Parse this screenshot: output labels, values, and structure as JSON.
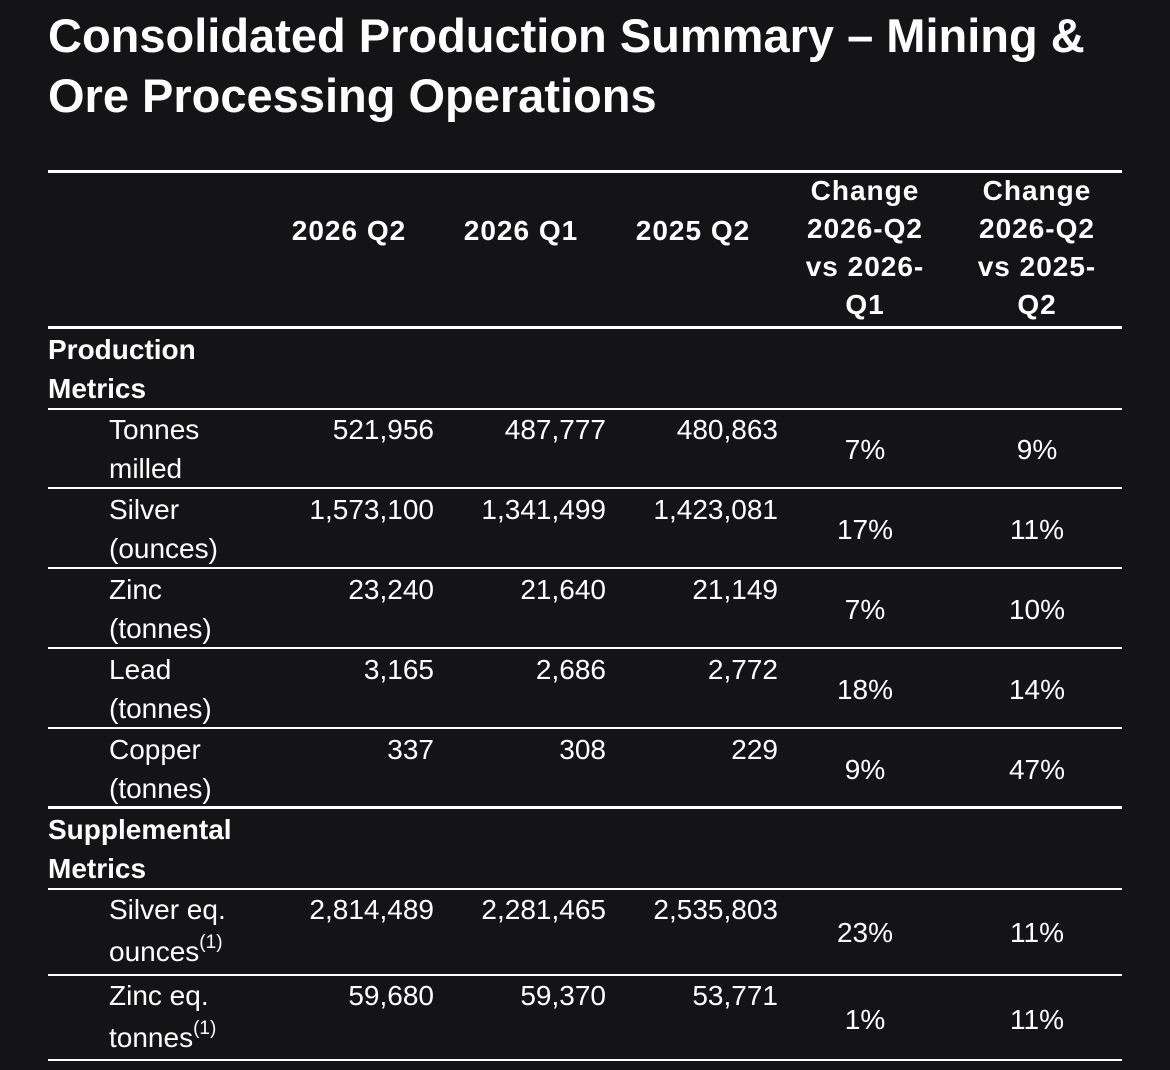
{
  "title": "Consolidated Production Summary – Mining & Ore Processing Operations",
  "columns": {
    "c1": "2026 Q2",
    "c2": "2026 Q1",
    "c3": "2025 Q2",
    "c4_l1": "Change",
    "c4_l2": "2026-Q2",
    "c4_l3": "vs 2026-",
    "c4_l4": "Q1",
    "c5_l1": "Change",
    "c5_l2": "2026-Q2",
    "c5_l3": "vs 2025-",
    "c5_l4": "Q2"
  },
  "sections": {
    "production": {
      "l1": "Production",
      "l2": "Metrics"
    },
    "supplemental": {
      "l1": "Supplemental",
      "l2": "Metrics"
    }
  },
  "rows": [
    {
      "label1": "Tonnes",
      "label2": "milled",
      "v1": "521,956",
      "v2": "487,777",
      "v3": "480,863",
      "chg_q": "7%",
      "chg_y": "9%"
    },
    {
      "label1": "Silver",
      "label2": "(ounces)",
      "v1": "1,573,100",
      "v2": "1,341,499",
      "v3": "1,423,081",
      "chg_q": "17%",
      "chg_y": "11%"
    },
    {
      "label1": "Zinc",
      "label2": "(tonnes)",
      "v1": "23,240",
      "v2": "21,640",
      "v3": "21,149",
      "chg_q": "7%",
      "chg_y": "10%"
    },
    {
      "label1": "Lead",
      "label2": "(tonnes)",
      "v1": "3,165",
      "v2": "2,686",
      "v3": "2,772",
      "chg_q": "18%",
      "chg_y": "14%"
    },
    {
      "label1": "Copper",
      "label2": "(tonnes)",
      "v1": "337",
      "v2": "308",
      "v3": "229",
      "chg_q": "9%",
      "chg_y": "47%"
    },
    {
      "label1": "Silver eq.",
      "label2": "ounces",
      "note": "(1)",
      "v1": "2,814,489",
      "v2": "2,281,465",
      "v3": "2,535,803",
      "chg_q": "23%",
      "chg_y": "11%"
    },
    {
      "label1": "Zinc eq.",
      "label2": "tonnes",
      "note": "(1)",
      "v1": "59,680",
      "v2": "59,370",
      "v3": "53,771",
      "chg_q": "1%",
      "chg_y": "11%"
    }
  ]
}
